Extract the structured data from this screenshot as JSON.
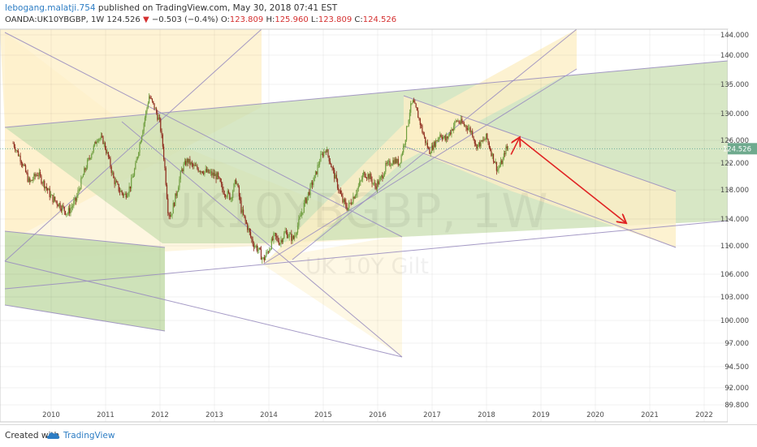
{
  "header": {
    "author": "lebogang.malatji.754",
    "published_text": "published on TradingView.com, May 30, 2018 07:41 EST",
    "symbol": "OANDA:UK10YBGBP, 1W",
    "last": "124.526",
    "change_arrow": "▼",
    "change": "−0.503 (−0.4%)",
    "open_label": "O:",
    "open": "123.809",
    "high_label": "H:",
    "high": "125.960",
    "low_label": "L:",
    "low": "123.809",
    "close_label": "C:",
    "close": "124.526"
  },
  "watermark": {
    "symbol": "UK10YBGBP, 1W",
    "description": "UK 10Y Gilt"
  },
  "footer": {
    "created_with": "Created with",
    "brand": "TradingView",
    "logo_icon": "tradingview-cloud-icon"
  },
  "colors": {
    "candle_up": "#6f9e3f",
    "candle_down": "#8e2d1e",
    "channel_line": "#9b8fc0",
    "zone_yellow": "#fdefc6",
    "zone_green": "#c9dfb1",
    "arrow": "#e02424",
    "last_price_line": "#6fae9a"
  },
  "chart_data": {
    "type": "candlestick",
    "timeframe": "1W",
    "x_tick_labels": [
      "2010",
      "2011",
      "2012",
      "2013",
      "2014",
      "2015",
      "2016",
      "2017",
      "2018",
      "2019",
      "2020",
      "2021",
      "2022"
    ],
    "y_tick_labels": [
      "144.000",
      "140.000",
      "135.000",
      "130.000",
      "126.000",
      "122.000",
      "118.000",
      "114.000",
      "110.000",
      "106.000",
      "103.000",
      "100.000",
      "97.000",
      "94.500",
      "92.000",
      "89.800"
    ],
    "current_price_label": "124.526",
    "xlim": [
      2009.25,
      2022.5
    ],
    "approx_close_path": [
      {
        "x": 2009.3,
        "y": 125.5
      },
      {
        "x": 2009.45,
        "y": 122.5
      },
      {
        "x": 2009.6,
        "y": 119.0
      },
      {
        "x": 2009.75,
        "y": 120.5
      },
      {
        "x": 2009.9,
        "y": 118.5
      },
      {
        "x": 2010.0,
        "y": 117.0
      },
      {
        "x": 2010.15,
        "y": 116.0
      },
      {
        "x": 2010.3,
        "y": 114.8
      },
      {
        "x": 2010.45,
        "y": 116.5
      },
      {
        "x": 2010.6,
        "y": 120.5
      },
      {
        "x": 2010.75,
        "y": 124.0
      },
      {
        "x": 2010.85,
        "y": 126.5
      },
      {
        "x": 2010.95,
        "y": 126.0
      },
      {
        "x": 2011.05,
        "y": 123.0
      },
      {
        "x": 2011.15,
        "y": 119.5
      },
      {
        "x": 2011.25,
        "y": 118.0
      },
      {
        "x": 2011.35,
        "y": 117.2
      },
      {
        "x": 2011.45,
        "y": 118.5
      },
      {
        "x": 2011.55,
        "y": 121.5
      },
      {
        "x": 2011.65,
        "y": 126.5
      },
      {
        "x": 2011.75,
        "y": 130.5
      },
      {
        "x": 2011.8,
        "y": 133.0
      },
      {
        "x": 2011.9,
        "y": 131.0
      },
      {
        "x": 2012.0,
        "y": 128.5
      },
      {
        "x": 2012.05,
        "y": 125.0
      },
      {
        "x": 2012.1,
        "y": 120.0
      },
      {
        "x": 2012.15,
        "y": 115.0
      },
      {
        "x": 2012.2,
        "y": 114.5
      },
      {
        "x": 2012.3,
        "y": 117.5
      },
      {
        "x": 2012.4,
        "y": 121.0
      },
      {
        "x": 2012.5,
        "y": 122.5
      },
      {
        "x": 2012.6,
        "y": 121.5
      },
      {
        "x": 2012.75,
        "y": 121.0
      },
      {
        "x": 2012.9,
        "y": 120.5
      },
      {
        "x": 2013.05,
        "y": 120.0
      },
      {
        "x": 2013.15,
        "y": 118.0
      },
      {
        "x": 2013.3,
        "y": 117.0
      },
      {
        "x": 2013.4,
        "y": 119.5
      },
      {
        "x": 2013.5,
        "y": 115.0
      },
      {
        "x": 2013.6,
        "y": 113.0
      },
      {
        "x": 2013.7,
        "y": 110.5
      },
      {
        "x": 2013.8,
        "y": 109.5
      },
      {
        "x": 2013.9,
        "y": 108.0
      },
      {
        "x": 2014.0,
        "y": 109.5
      },
      {
        "x": 2014.1,
        "y": 111.5
      },
      {
        "x": 2014.2,
        "y": 110.5
      },
      {
        "x": 2014.3,
        "y": 112.0
      },
      {
        "x": 2014.45,
        "y": 111.0
      },
      {
        "x": 2014.55,
        "y": 113.5
      },
      {
        "x": 2014.65,
        "y": 116.0
      },
      {
        "x": 2014.75,
        "y": 118.0
      },
      {
        "x": 2014.85,
        "y": 120.0
      },
      {
        "x": 2014.95,
        "y": 123.0
      },
      {
        "x": 2015.05,
        "y": 124.5
      },
      {
        "x": 2015.15,
        "y": 121.5
      },
      {
        "x": 2015.25,
        "y": 119.0
      },
      {
        "x": 2015.35,
        "y": 116.5
      },
      {
        "x": 2015.45,
        "y": 115.5
      },
      {
        "x": 2015.55,
        "y": 117.0
      },
      {
        "x": 2015.65,
        "y": 118.5
      },
      {
        "x": 2015.75,
        "y": 120.5
      },
      {
        "x": 2015.85,
        "y": 120.0
      },
      {
        "x": 2015.95,
        "y": 118.5
      },
      {
        "x": 2016.05,
        "y": 119.5
      },
      {
        "x": 2016.15,
        "y": 121.5
      },
      {
        "x": 2016.3,
        "y": 122.5
      },
      {
        "x": 2016.4,
        "y": 122.0
      },
      {
        "x": 2016.5,
        "y": 126.0
      },
      {
        "x": 2016.6,
        "y": 131.0
      },
      {
        "x": 2016.65,
        "y": 132.0
      },
      {
        "x": 2016.75,
        "y": 129.5
      },
      {
        "x": 2016.85,
        "y": 126.5
      },
      {
        "x": 2016.95,
        "y": 124.0
      },
      {
        "x": 2017.05,
        "y": 125.5
      },
      {
        "x": 2017.15,
        "y": 127.0
      },
      {
        "x": 2017.25,
        "y": 126.0
      },
      {
        "x": 2017.35,
        "y": 127.5
      },
      {
        "x": 2017.45,
        "y": 129.0
      },
      {
        "x": 2017.55,
        "y": 128.5
      },
      {
        "x": 2017.65,
        "y": 128.0
      },
      {
        "x": 2017.75,
        "y": 127.0
      },
      {
        "x": 2017.8,
        "y": 125.0
      },
      {
        "x": 2017.9,
        "y": 125.5
      },
      {
        "x": 2018.0,
        "y": 126.5
      },
      {
        "x": 2018.05,
        "y": 125.0
      },
      {
        "x": 2018.1,
        "y": 123.5
      },
      {
        "x": 2018.2,
        "y": 121.0
      },
      {
        "x": 2018.3,
        "y": 122.5
      },
      {
        "x": 2018.35,
        "y": 124.5
      },
      {
        "x": 2018.41,
        "y": 124.526
      }
    ],
    "annotations": [
      {
        "type": "arrow",
        "from": {
          "x": 2018.45,
          "y": 123.5
        },
        "to": {
          "x": 2018.6,
          "y": 126.3
        }
      },
      {
        "type": "arrow",
        "from": {
          "x": 2018.6,
          "y": 126.3
        },
        "to": {
          "x": 2020.55,
          "y": 113.5
        }
      }
    ]
  }
}
